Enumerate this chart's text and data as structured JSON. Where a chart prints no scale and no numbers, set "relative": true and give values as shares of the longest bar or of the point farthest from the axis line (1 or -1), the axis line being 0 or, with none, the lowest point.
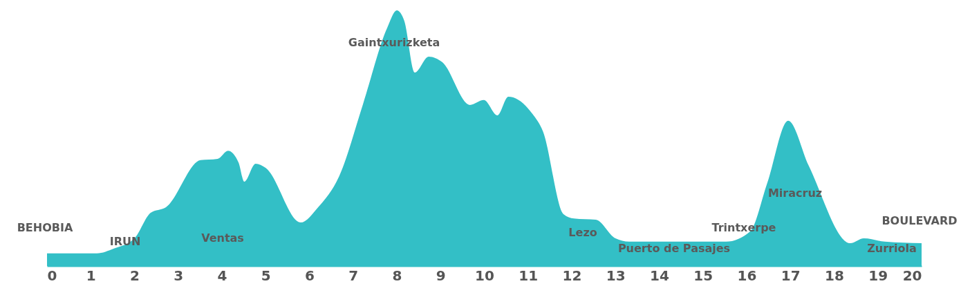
{
  "chart_data": {
    "type": "area",
    "relative": true,
    "color": "#33bfc6",
    "x": [
      0,
      1.14,
      1.53,
      2.0,
      2.37,
      2.72,
      3.51,
      3.9,
      4.14,
      4.38,
      4.51,
      4.77,
      5.0,
      5.8,
      6.2,
      6.68,
      7.23,
      7.78,
      8.0,
      8.17,
      8.41,
      8.73,
      9.04,
      9.67,
      9.99,
      10.3,
      10.55,
      11.1,
      11.34,
      11.81,
      12.05,
      12.55,
      13.0,
      13.31,
      15.53,
      16.08,
      16.47,
      16.95,
      17.42,
      18.37,
      18.68,
      19.16,
      20.0
    ],
    "values": [
      0.049,
      0.049,
      0.068,
      0.108,
      0.208,
      0.23,
      0.414,
      0.419,
      0.451,
      0.405,
      0.33,
      0.4,
      0.384,
      0.17,
      0.23,
      0.351,
      0.635,
      0.932,
      1,
      0.959,
      0.757,
      0.819,
      0.797,
      0.63,
      0.649,
      0.589,
      0.662,
      0.595,
      0.527,
      0.203,
      0.186,
      0.181,
      0.108,
      0.095,
      0.095,
      0.135,
      0.324,
      0.568,
      0.392,
      0.089,
      0.108,
      0.095,
      0.089
    ],
    "xlim": [
      0,
      20
    ],
    "xticks": [
      0,
      1,
      2,
      3,
      4,
      5,
      6,
      7,
      8,
      9,
      10,
      11,
      12,
      13,
      14,
      15,
      16,
      17,
      18,
      19,
      20
    ],
    "annotations": [
      "BEHOBIA",
      "IRUN",
      "Ventas",
      "Gaintxurizketa",
      "Lezo",
      "Puerto de Pasajes",
      "Trintxerpe",
      "Miracruz",
      "Zurriola",
      "BOULEVARD"
    ]
  }
}
